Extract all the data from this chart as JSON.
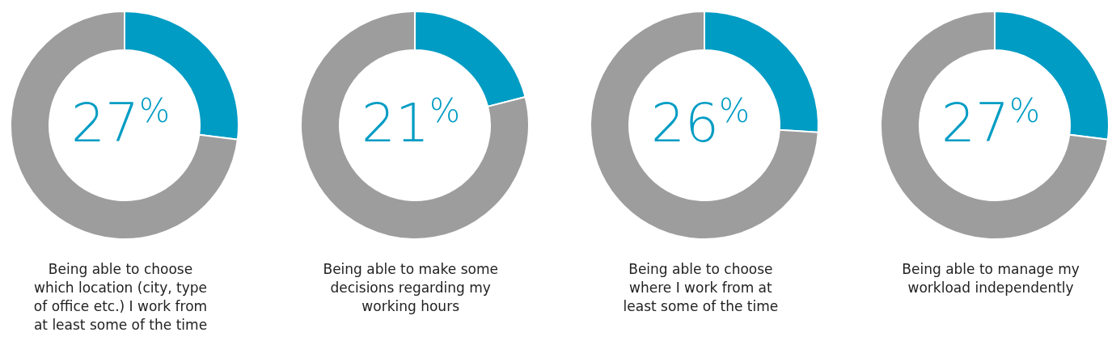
{
  "chart_data": [
    {
      "type": "donut",
      "title": "Being able to choose which location (city, type of office etc.) I work from at least some of the time",
      "categories": [
        null,
        null
      ],
      "values": [
        27,
        73
      ],
      "colors": [
        "#009cc4",
        "#9d9d9d"
      ],
      "annotations": [
        "27$^{%}$"
      ]
    },
    {
      "type": "donut",
      "title": "Being able to make some decisions regarding my working hours",
      "categories": [
        null,
        null
      ],
      "values": [
        21,
        79
      ],
      "colors": [
        "#009cc4",
        "#9d9d9d"
      ],
      "annotations": [
        "21$^{%}$"
      ]
    },
    {
      "type": "donut",
      "title": "Being able to choose where I work from at least some of the time",
      "categories": [
        null,
        null
      ],
      "values": [
        26,
        74
      ],
      "colors": [
        "#009cc4",
        "#9d9d9d"
      ],
      "annotations": [
        "26$^{%}$"
      ]
    },
    {
      "type": "donut",
      "title": "Being able to manage my workload independently",
      "categories": [
        null,
        null
      ],
      "values": [
        27,
        73
      ],
      "colors": [
        "#009cc4",
        "#9d9d9d"
      ],
      "annotations": [
        "27$^{%}$"
      ]
    }
  ]
}
